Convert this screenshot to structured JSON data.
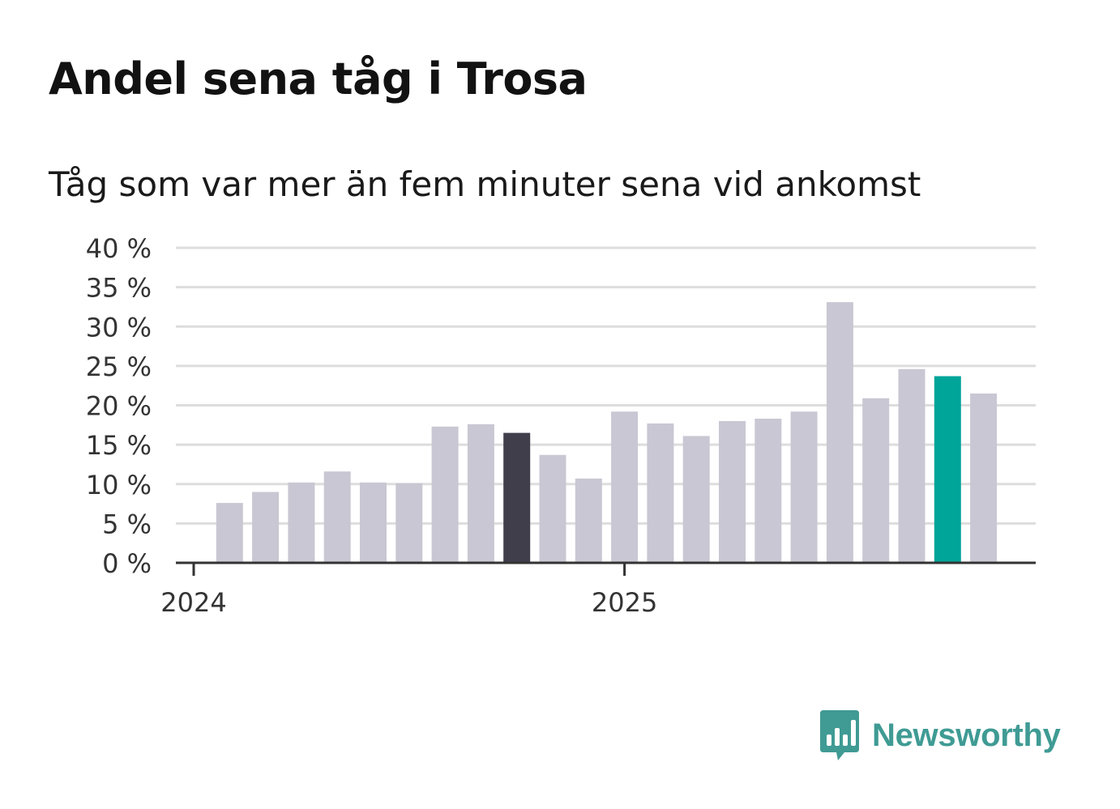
{
  "title": "Andel sena tåg i Trosa",
  "subtitle": "Tåg som var mer än fem minuter sena vid ankomst",
  "brand": {
    "name": "Newsworthy",
    "icon": "newsworthy-logo-icon",
    "color": "#3f9b94"
  },
  "colors": {
    "default_bar": "#c9c7d3",
    "highlight_dark": "#403e4b",
    "highlight_latest": "#00a59a",
    "grid": "#dddddd",
    "axis": "#333333"
  },
  "chart_data": {
    "type": "bar",
    "ylabel": "",
    "ylim": [
      0,
      40
    ],
    "yticks": [
      0,
      5,
      10,
      15,
      20,
      25,
      30,
      35,
      40
    ],
    "ytick_labels": [
      "0 %",
      "5 %",
      "10 %",
      "15 %",
      "20 %",
      "25 %",
      "30 %",
      "35 %",
      "40 %"
    ],
    "xtick_labels": [
      "2024",
      "2025"
    ],
    "grid": true,
    "categories": [
      "2024-01",
      "2024-02",
      "2024-03",
      "2024-04",
      "2024-05",
      "2024-06",
      "2024-07",
      "2024-08",
      "2024-09",
      "2024-10",
      "2024-11",
      "2024-12",
      "2025-01",
      "2025-02",
      "2025-03",
      "2025-04",
      "2025-05",
      "2025-06",
      "2025-07",
      "2025-08",
      "2025-09",
      "2025-10",
      "2025-11",
      "2025-12"
    ],
    "values": [
      null,
      7.6,
      9.0,
      10.2,
      11.6,
      10.2,
      10.1,
      17.3,
      17.6,
      16.5,
      13.7,
      10.7,
      19.2,
      17.7,
      16.1,
      18.0,
      18.3,
      19.2,
      33.1,
      20.9,
      24.6,
      23.7,
      21.5,
      null
    ],
    "highlight": {
      "2024-10": "dark",
      "2025-10": "latest"
    }
  }
}
